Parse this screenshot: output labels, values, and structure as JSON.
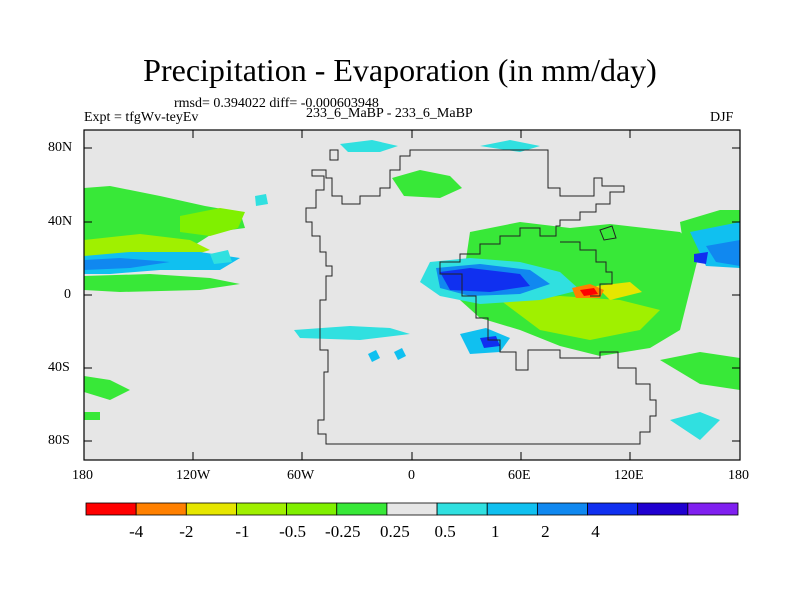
{
  "title": "Precipitation - Evaporation (in mm/day)",
  "stats": "rmsd= 0.394022  diff= -0.000603948",
  "expt_label": "Expt = tfgWv-teyEv",
  "run_label": "233_6_MaBP - 233_6_MaBP",
  "season": "DJF",
  "y_ticks": [
    "80N",
    "40N",
    "0",
    "40S",
    "80S"
  ],
  "x_ticks": [
    "180",
    "120W",
    "60W",
    "0",
    "60E",
    "120E",
    "180"
  ],
  "colorbar": {
    "colors": [
      "#ff0000",
      "#ff8000",
      "#e6e600",
      "#a0f000",
      "#80f000",
      "#38e838",
      "#e6e6e6",
      "#30e0e0",
      "#10c0f0",
      "#1088f0",
      "#1030f0",
      "#2000d0",
      "#8020f0"
    ],
    "labels": [
      "-4",
      "-2",
      "-1",
      "-0.5",
      "-0.25",
      "0.25",
      "0.5",
      "1",
      "2",
      "4"
    ]
  },
  "map": {
    "background": "#e6e6e6",
    "lon_range": [
      -180,
      180
    ],
    "lat_range": [
      -90,
      90
    ]
  }
}
